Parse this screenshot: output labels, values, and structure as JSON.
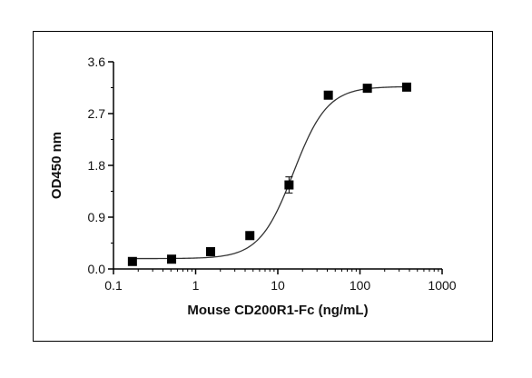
{
  "chart_data": {
    "type": "scatter",
    "title": "",
    "xlabel": "Mouse CD200R1-Fc (ng/mL)",
    "ylabel": "OD450 nm",
    "x_scale": "log",
    "xlim": [
      0.1,
      1000
    ],
    "ylim": [
      0,
      3.6
    ],
    "x_ticks": [
      0.1,
      1,
      10,
      100,
      1000
    ],
    "x_tick_labels": [
      "0.1",
      "1",
      "10",
      "100",
      "1000"
    ],
    "y_ticks": [
      0,
      0.9,
      1.8,
      2.7,
      3.6
    ],
    "y_tick_labels": [
      "0.0",
      "0.9",
      "1.8",
      "2.7",
      "3.6"
    ],
    "grid": false,
    "legend": "none",
    "series": [
      {
        "marker": "square",
        "color": "#000000",
        "x": [
          0.17,
          0.51,
          1.52,
          4.57,
          13.7,
          41.2,
          123,
          370
        ],
        "y": [
          0.13,
          0.17,
          0.3,
          0.58,
          1.46,
          3.02,
          3.14,
          3.16
        ],
        "error": [
          0.02,
          0.02,
          0.02,
          0.03,
          0.14,
          0.05,
          0.03,
          0.02
        ]
      }
    ],
    "fit": {
      "type": "4PL",
      "bottom": 0.18,
      "top": 3.17,
      "ec50": 15.5,
      "hill": 2.1,
      "color": "#333333"
    }
  }
}
